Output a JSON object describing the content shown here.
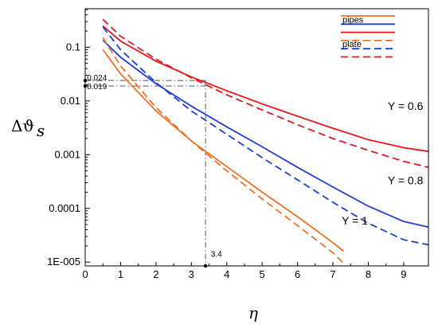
{
  "chart_data": {
    "type": "line",
    "xlabel": "η",
    "ylabel": {
      "base": "Δϑ",
      "sub": "s"
    },
    "xlim": [
      0,
      9.7
    ],
    "ylim": [
      8.5e-06,
      0.52
    ],
    "yscale": "log",
    "grid": false,
    "x_ticks": [
      0,
      1,
      2,
      3,
      4,
      5,
      6,
      7,
      8,
      9
    ],
    "x_tick_labels": [
      "0",
      "1",
      "2",
      "3",
      "4",
      "5",
      "6",
      "7",
      "8",
      "9"
    ],
    "y_ticks": [
      1e-05,
      0.0001,
      0.001,
      0.01,
      0.1
    ],
    "y_tick_labels": [
      "1E-005",
      "0.0001",
      "0.001",
      "0.01",
      "0.1"
    ],
    "colors": {
      "Y06": "#e31a1c",
      "Y08": "#1f3fd6",
      "Y1": "#f36f1e",
      "guide": "#555555"
    },
    "legend": {
      "position": "top-right",
      "entries": [
        {
          "label": "",
          "color": "#f36f1e",
          "style": "solid"
        },
        {
          "label": "pipes",
          "color": "#1f3fd6",
          "style": "solid"
        },
        {
          "label": "",
          "color": "#e31a1c",
          "style": "solid"
        },
        {
          "label": "",
          "color": "#f36f1e",
          "style": "dashed"
        },
        {
          "label": "plate",
          "color": "#1f3fd6",
          "style": "dashed"
        },
        {
          "label": "",
          "color": "#e31a1c",
          "style": "dashed"
        }
      ]
    },
    "series": [
      {
        "color": "#e31a1c",
        "style": "solid",
        "x": [
          0.5,
          1,
          2,
          3,
          4,
          5,
          6,
          7,
          8,
          9,
          9.7
        ],
        "y": [
          0.25,
          0.13,
          0.055,
          0.028,
          0.0155,
          0.0088,
          0.0052,
          0.0031,
          0.0019,
          0.00135,
          0.00115
        ]
      },
      {
        "color": "#e31a1c",
        "style": "dashed",
        "x": [
          0.5,
          1,
          2,
          3,
          4,
          5,
          6,
          7,
          8,
          9,
          9.7
        ],
        "y": [
          0.33,
          0.16,
          0.06,
          0.027,
          0.013,
          0.0068,
          0.0036,
          0.002,
          0.0012,
          0.00075,
          0.00058
        ]
      },
      {
        "color": "#1f3fd6",
        "style": "solid",
        "x": [
          0.5,
          1,
          2,
          3,
          4,
          5,
          6,
          7,
          8,
          9,
          9.7
        ],
        "y": [
          0.135,
          0.065,
          0.021,
          0.008,
          0.0033,
          0.0014,
          0.00058,
          0.00025,
          0.00011,
          5.7e-05,
          4.5e-05
        ]
      },
      {
        "color": "#1f3fd6",
        "style": "dashed",
        "x": [
          0.5,
          1,
          2,
          3,
          4,
          5,
          6,
          7,
          8,
          9,
          9.7
        ],
        "y": [
          0.24,
          0.09,
          0.022,
          0.0065,
          0.0024,
          0.00088,
          0.00034,
          0.00013,
          5.3e-05,
          2.6e-05,
          2.1e-05
        ]
      },
      {
        "color": "#f36f1e",
        "style": "solid",
        "x": [
          0.5,
          1,
          2,
          3,
          4,
          5,
          6,
          7,
          7.3
        ],
        "y": [
          0.09,
          0.032,
          0.0065,
          0.0018,
          0.0006,
          0.0002,
          7e-05,
          2.3e-05,
          1.6e-05
        ]
      },
      {
        "color": "#f36f1e",
        "style": "dashed",
        "x": [
          0.5,
          1,
          2,
          3,
          4,
          5,
          6,
          7,
          7.3
        ],
        "y": [
          0.15,
          0.045,
          0.0075,
          0.0018,
          0.0005,
          0.00015,
          4.8e-05,
          1.5e-05,
          9.5e-06
        ]
      }
    ],
    "annotations": [
      {
        "text": "0.024",
        "x": 0.05,
        "y": 0.024
      },
      {
        "text": "0.019",
        "x": 0.05,
        "y": 0.0165
      },
      {
        "text": "3.4",
        "x": 3.55,
        "y": 1.25e-05
      },
      {
        "text": "Y = 0.6",
        "x": 8.55,
        "y": 0.0068
      },
      {
        "text": "Y = 0.8",
        "x": 8.55,
        "y": 0.00028
      },
      {
        "text": "Y = 1",
        "x": 7.25,
        "y": 5e-05
      }
    ],
    "guides": [
      {
        "from": [
          0,
          0.024
        ],
        "to": [
          3.4,
          0.024
        ]
      },
      {
        "from": [
          0,
          0.019
        ],
        "to": [
          3.4,
          0.019
        ]
      },
      {
        "from": [
          3.4,
          0.024
        ],
        "to": [
          3.4,
          8.5e-06
        ]
      }
    ],
    "marked_points": [
      {
        "x": 0,
        "y": 0.024
      },
      {
        "x": 0,
        "y": 0.019
      },
      {
        "x": 3.4,
        "y": 8.5e-06
      }
    ]
  }
}
